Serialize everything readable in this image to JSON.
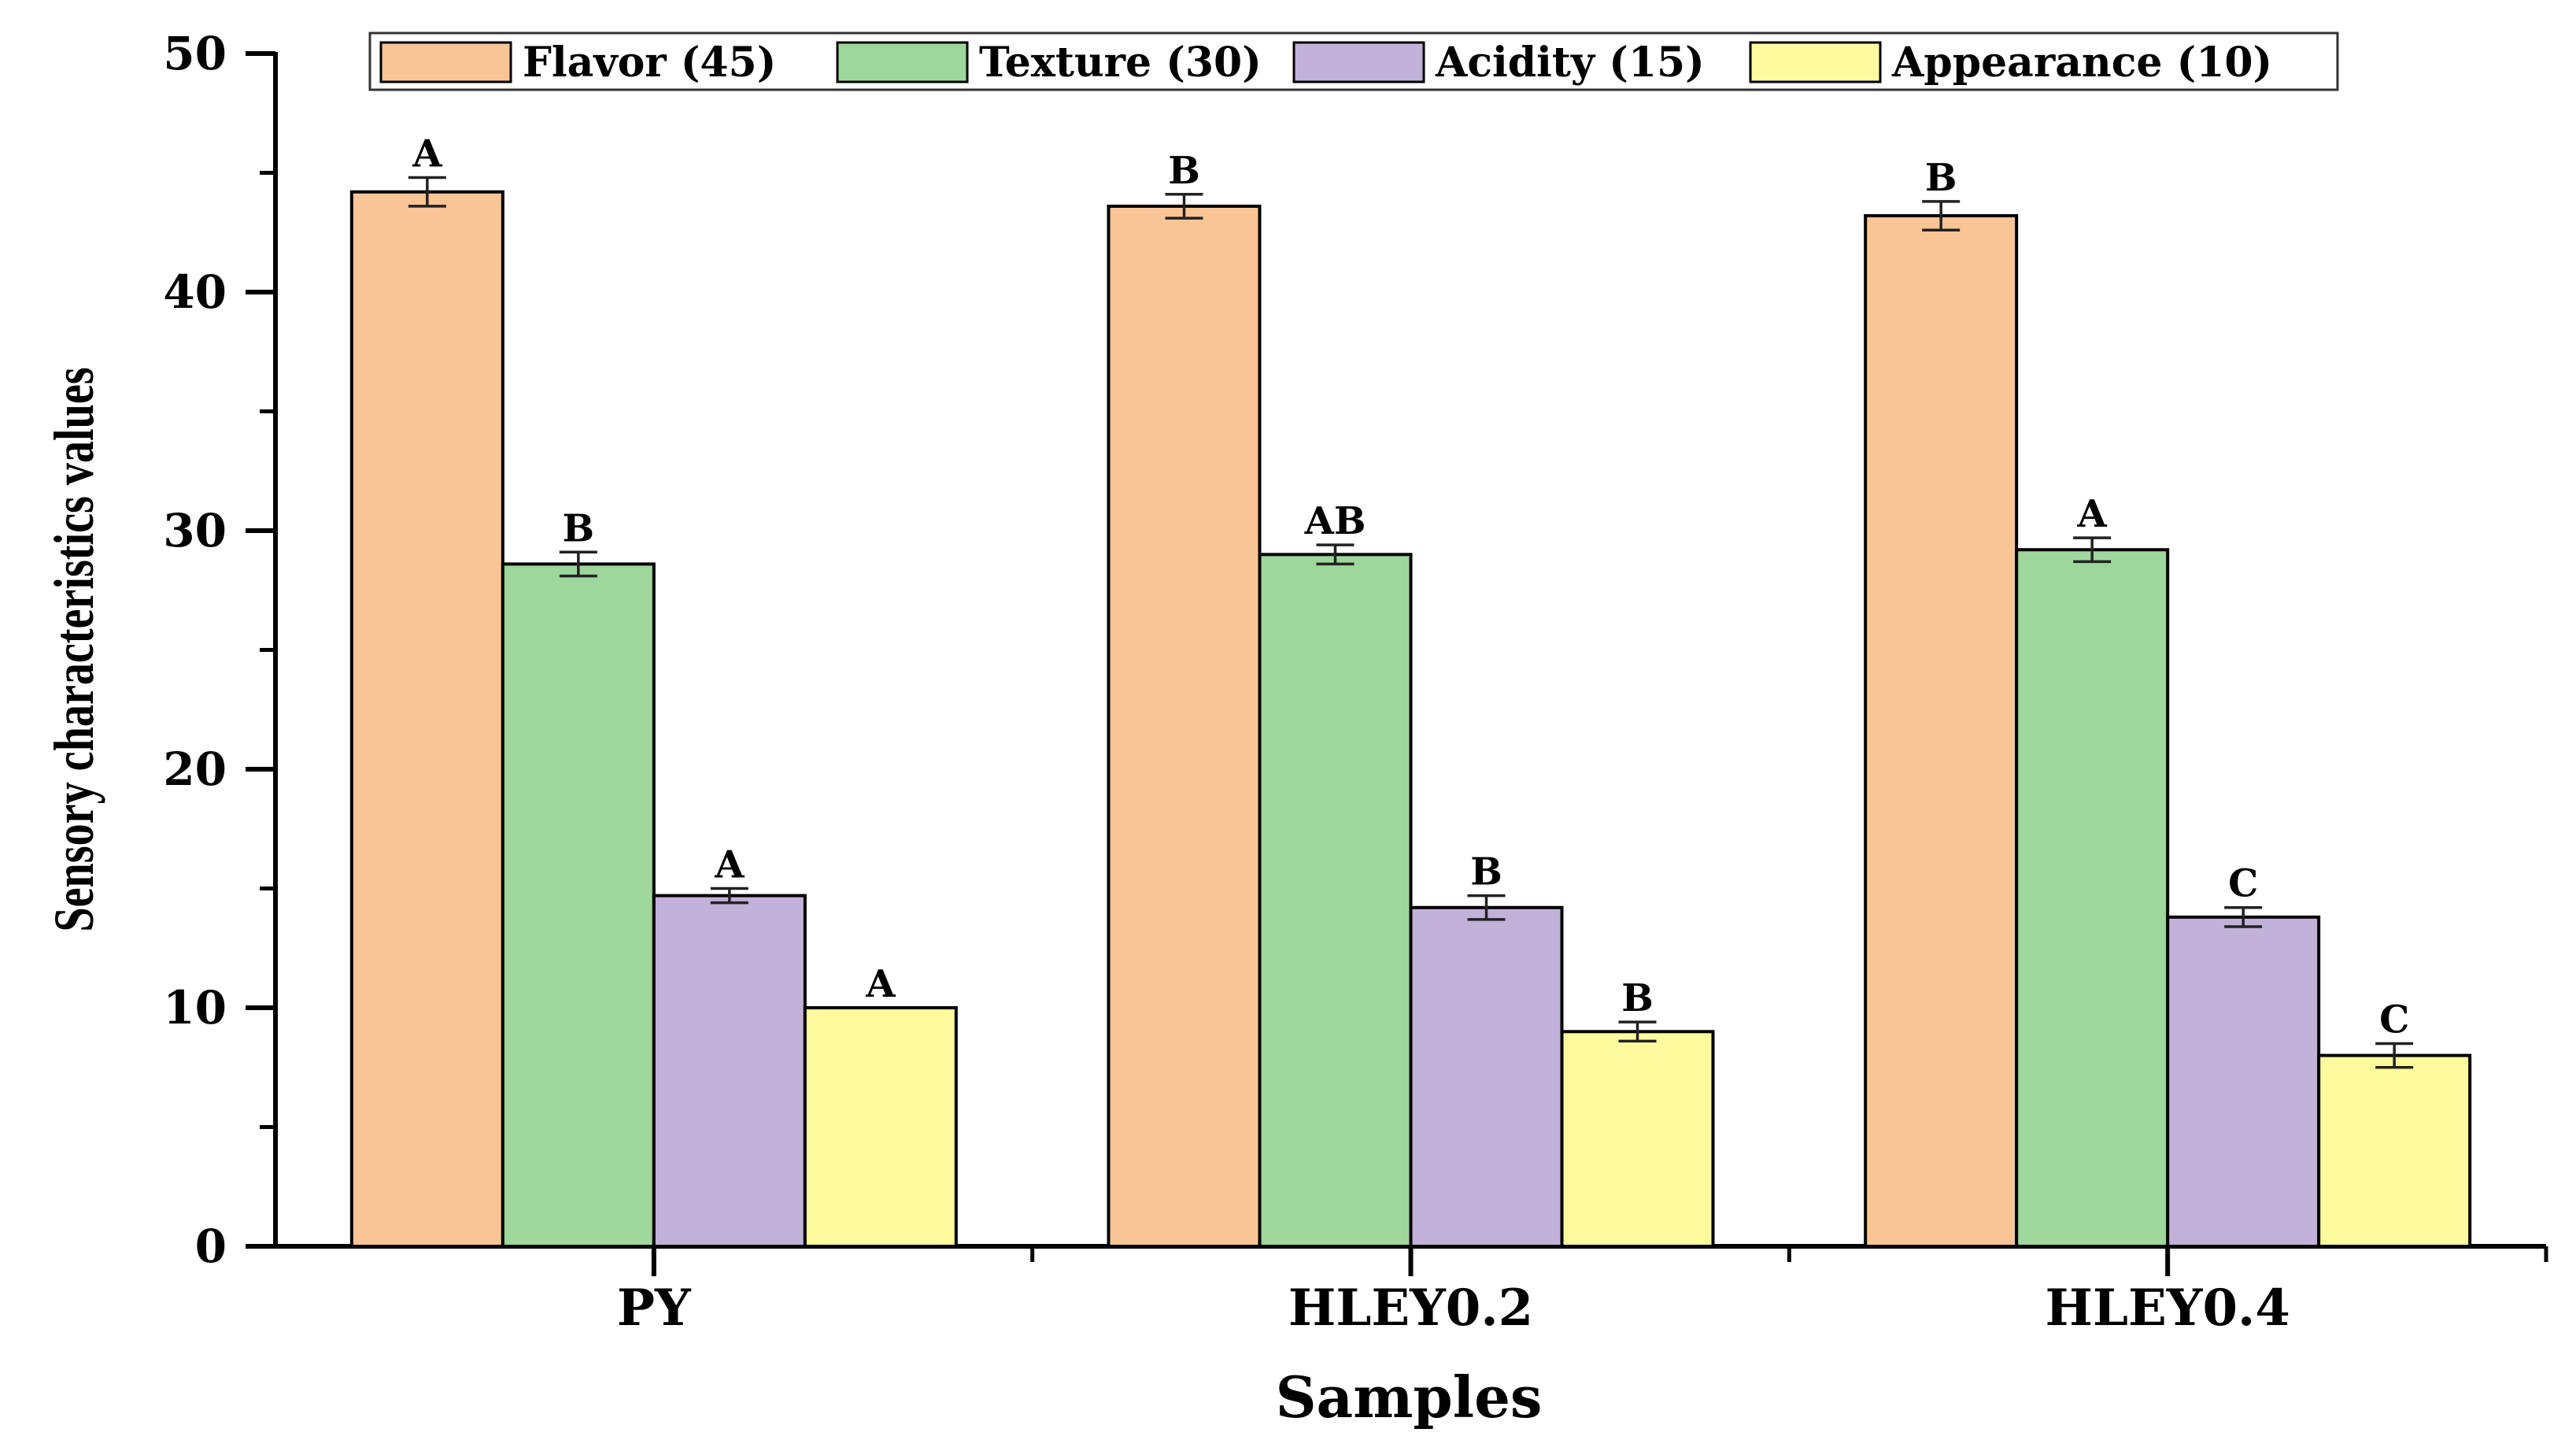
{
  "chart_data": {
    "type": "bar",
    "title": "",
    "xlabel": "Samples",
    "ylabel": "Sensory characteristics values",
    "ylim": [
      0,
      50
    ],
    "yticks": [
      0,
      10,
      20,
      30,
      40,
      50
    ],
    "categories": [
      "PY",
      "HLEY0.2",
      "HLEY0.4"
    ],
    "legend_position": "top",
    "series": [
      {
        "name": "Flavor (45)",
        "color": "#F9C595",
        "values": [
          44.2,
          43.6,
          43.2
        ],
        "errors": [
          0.6,
          0.5,
          0.6
        ],
        "letters": [
          "A",
          "B",
          "B"
        ]
      },
      {
        "name": "Texture (30)",
        "color": "#9ED79B",
        "values": [
          28.6,
          29.0,
          29.2
        ],
        "errors": [
          0.5,
          0.4,
          0.5
        ],
        "letters": [
          "B",
          "AB",
          "A"
        ]
      },
      {
        "name": "Acidity (15)",
        "color": "#C2B1D9",
        "values": [
          14.7,
          14.2,
          13.8
        ],
        "errors": [
          0.3,
          0.5,
          0.4
        ],
        "letters": [
          "A",
          "B",
          "C"
        ]
      },
      {
        "name": "Appearance (10)",
        "color": "#FDFB9E",
        "values": [
          10.0,
          9.0,
          8.0
        ],
        "errors": [
          0.0,
          0.4,
          0.5
        ],
        "letters": [
          "A",
          "B",
          "C"
        ]
      }
    ]
  }
}
